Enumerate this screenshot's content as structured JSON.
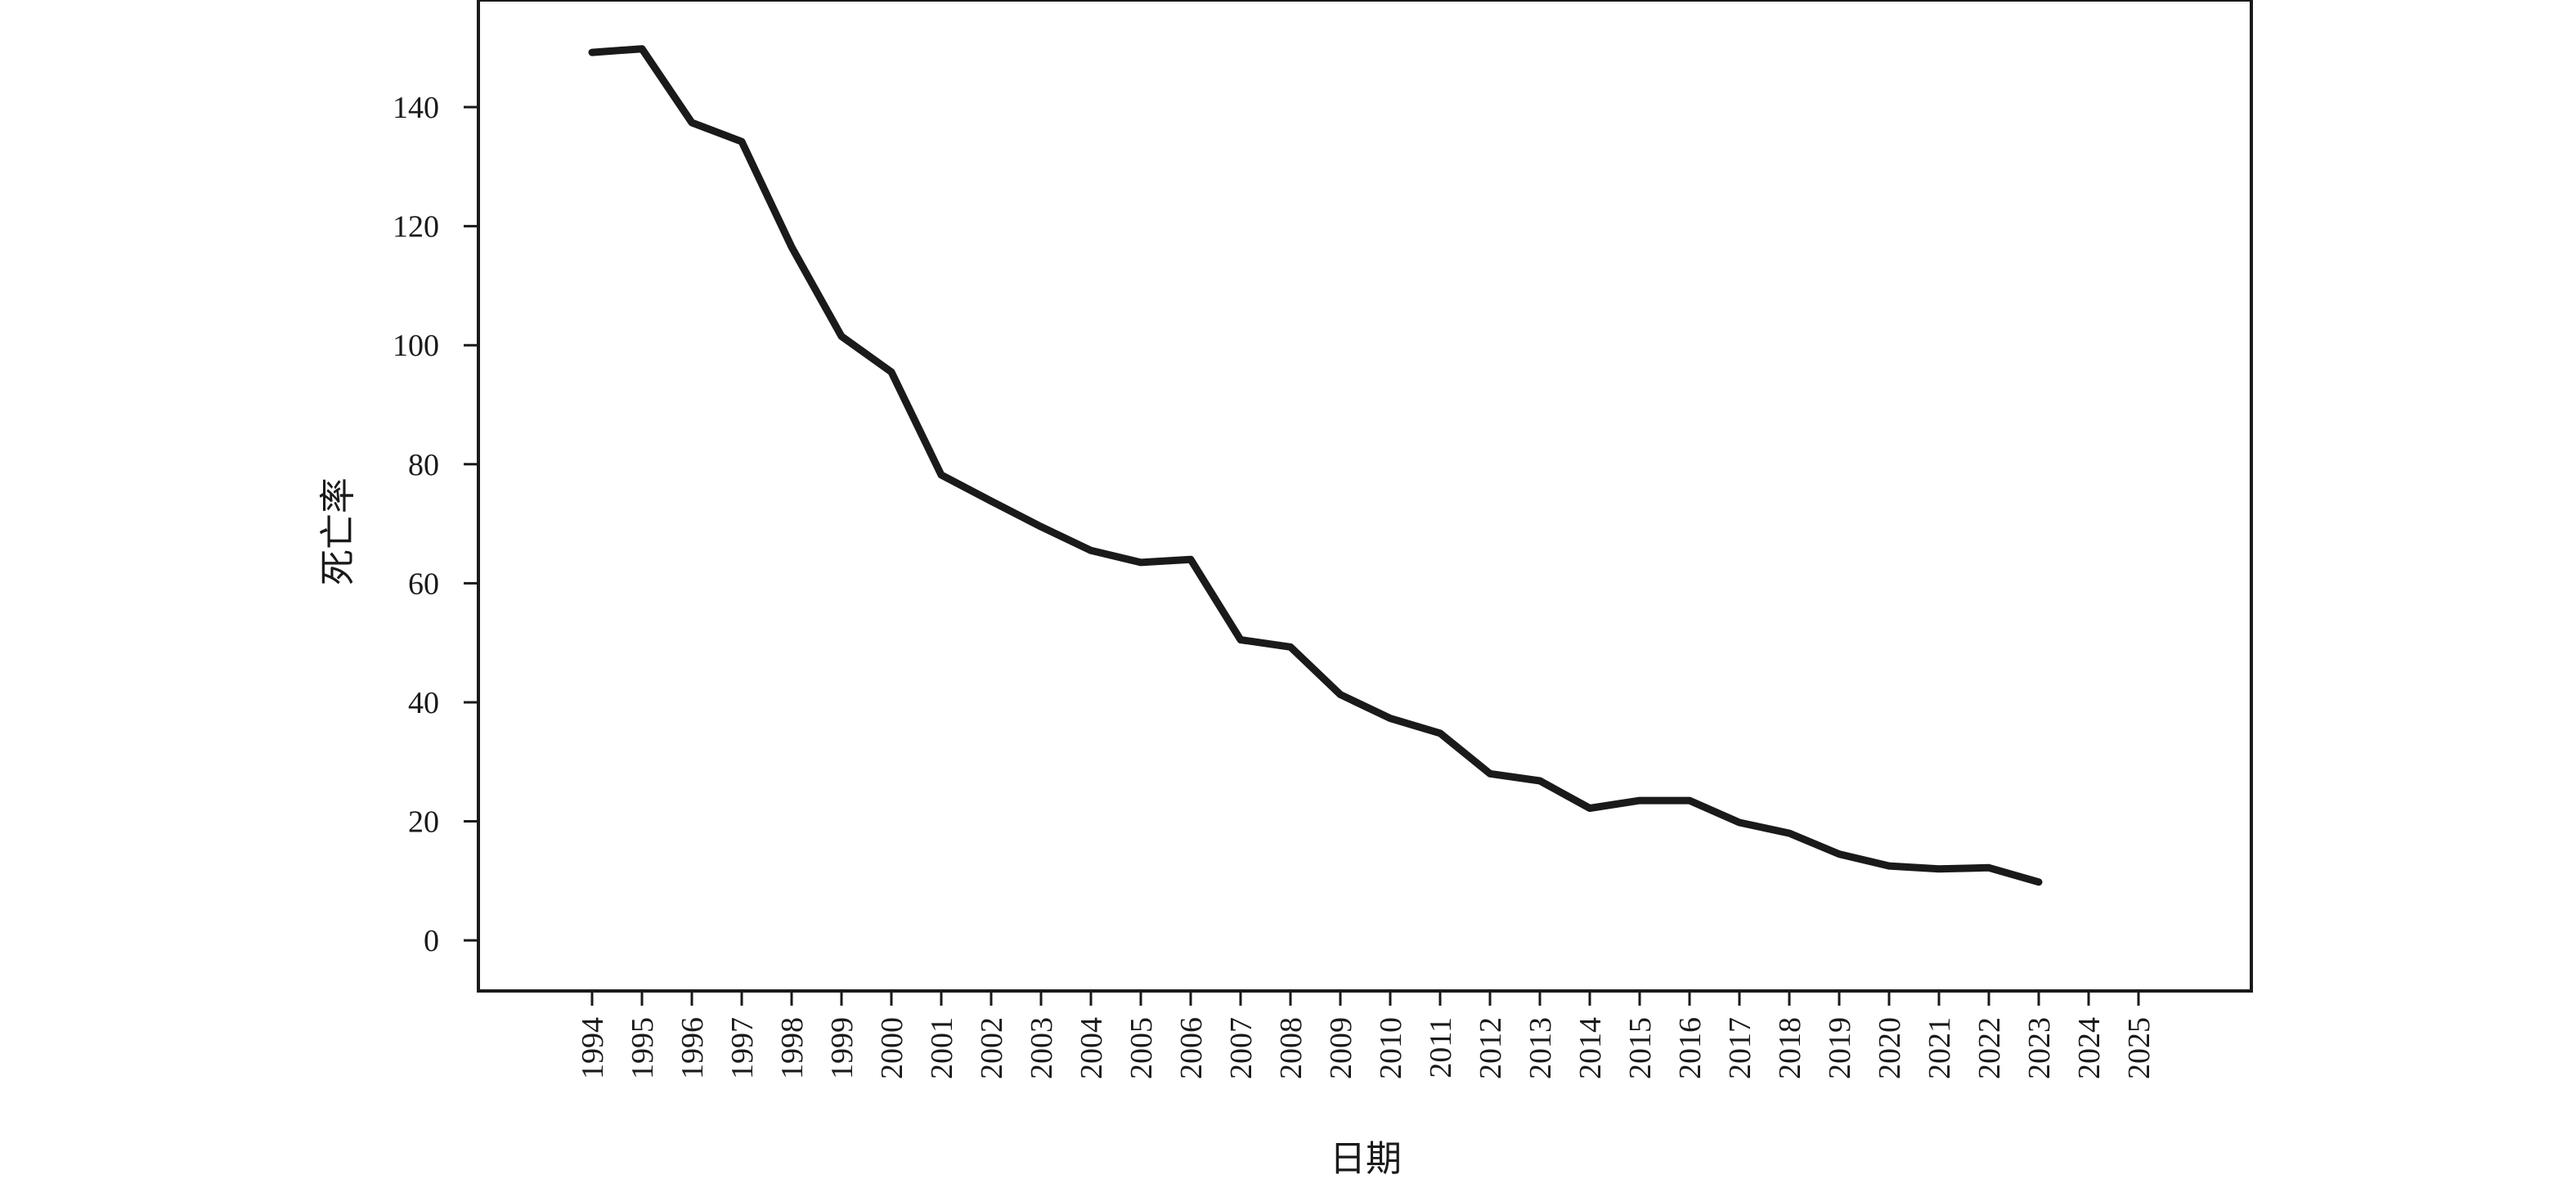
{
  "chart_data": {
    "type": "line",
    "title": "",
    "xlabel": "日期",
    "ylabel": "死亡率",
    "x_ticks": [
      "1994",
      "1995",
      "1996",
      "1997",
      "1998",
      "1999",
      "2000",
      "2001",
      "2002",
      "2003",
      "2004",
      "2005",
      "2006",
      "2007",
      "2008",
      "2009",
      "2010",
      "2011",
      "2012",
      "2013",
      "2014",
      "2015",
      "2016",
      "2017",
      "2018",
      "2019",
      "2020",
      "2021",
      "2022",
      "2023",
      "2024",
      "2025"
    ],
    "y_ticks": [
      0,
      20,
      40,
      60,
      80,
      100,
      120,
      140
    ],
    "ylim": [
      -8.5,
      158
    ],
    "grid": false,
    "legend": "none",
    "line_color": "#1a1a1a",
    "series": [
      {
        "x": [
          "1994",
          "1995",
          "1996",
          "1997",
          "1998",
          "1999",
          "2000",
          "2001",
          "2002",
          "2003",
          "2004",
          "2005",
          "2006",
          "2007",
          "2008",
          "2009",
          "2010",
          "2011",
          "2012",
          "2013",
          "2014",
          "2015",
          "2016",
          "2017",
          "2018",
          "2019",
          "2020",
          "2021",
          "2022",
          "2023"
        ],
        "values": [
          149.2,
          149.8,
          137.4,
          134.2,
          116.5,
          101.5,
          95.5,
          78.2,
          73.8,
          69.5,
          65.5,
          63.5,
          64.0,
          50.5,
          49.3,
          41.3,
          37.3,
          34.8,
          28.0,
          26.8,
          22.2,
          23.5,
          23.5,
          19.8,
          18.0,
          14.5,
          12.5,
          12.0,
          12.2,
          9.8
        ]
      }
    ]
  }
}
